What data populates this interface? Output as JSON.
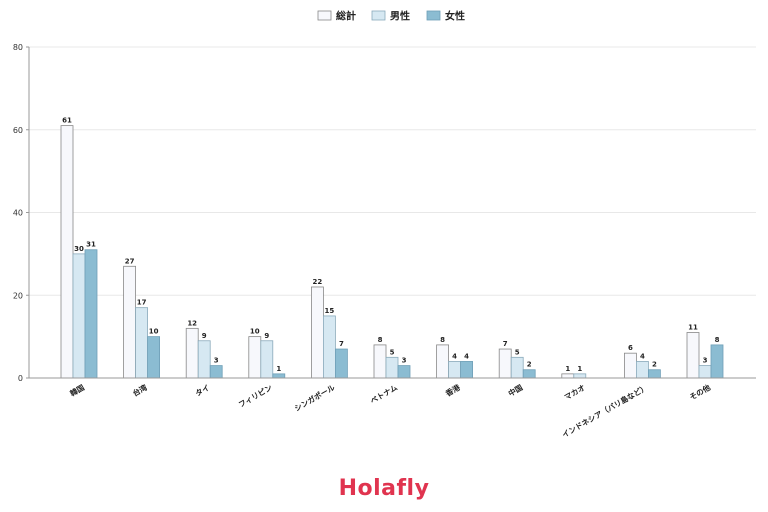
{
  "chart_data": {
    "type": "bar",
    "categories": [
      "韓国",
      "台湾",
      "タイ",
      "フィリピン",
      "シンガポール",
      "ベトナム",
      "香港",
      "中国",
      "マカオ",
      "インドネシア（バリ島など）",
      "その他"
    ],
    "series": [
      {
        "name": "総計",
        "values": [
          61,
          27,
          12,
          10,
          22,
          8,
          8,
          7,
          1,
          6,
          11
        ],
        "color": "#f7f8fc",
        "stroke": "#888888"
      },
      {
        "name": "男性",
        "values": [
          30,
          17,
          9,
          9,
          15,
          5,
          4,
          5,
          1,
          4,
          3
        ],
        "color": "#d6e8f2",
        "stroke": "#8aaabb"
      },
      {
        "name": "女性",
        "values": [
          31,
          10,
          3,
          1,
          7,
          3,
          4,
          2,
          null,
          2,
          8
        ],
        "color": "#8bbcd2",
        "stroke": "#6e9fb7"
      }
    ],
    "ylim": [
      0,
      80
    ],
    "yticks": [
      0,
      20,
      40,
      60,
      80
    ],
    "grid": true,
    "legend": "top-center",
    "xlabel": "",
    "ylabel": ""
  },
  "brand": {
    "name": "Holafly",
    "color": "#e0344f"
  }
}
